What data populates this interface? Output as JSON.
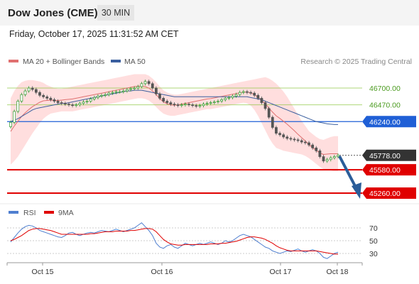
{
  "header": {
    "title": "Dow Jones (CME)",
    "timeframe": "30 MIN",
    "datetime": "Friday, October 17, 2025 11:31:52 AM CET"
  },
  "legend": {
    "ma20_label": "MA 20 + Bollinger Bands",
    "ma50_label": "MA 50",
    "source": "Research © 2025 Trading Central",
    "rsi_label": "RSI",
    "rsi_ma_label": "9MA"
  },
  "colors": {
    "resistance": "#8cc63f",
    "pivot": "#1f5fd6",
    "support": "#e00000",
    "current": "#333333",
    "ma20": "#e07070",
    "ma50": "#3a5f9f",
    "bollinger_fill": "#ffd6d6",
    "arrow": "#2b5d99",
    "rsi": "#4f7fd0",
    "rsi_ma": "#e00000"
  },
  "chart_data": [
    {
      "type": "candlestick",
      "yrange": [
        45150,
        46900
      ],
      "x_ticks": [
        "Oct 15",
        "Oct 16",
        "Oct 17",
        "Oct 18"
      ],
      "levels": [
        {
          "value": 46700,
          "label": "46700.00",
          "kind": "resistance"
        },
        {
          "value": 46470,
          "label": "46470.00",
          "kind": "resistance"
        },
        {
          "value": 46240,
          "label": "46240.00",
          "kind": "pivot"
        },
        {
          "value": 45778,
          "label": "45778.00",
          "kind": "current"
        },
        {
          "value": 45580,
          "label": "45580.00",
          "kind": "support"
        },
        {
          "value": 45260,
          "label": "45260.00",
          "kind": "support"
        }
      ],
      "close": [
        46230,
        46380,
        46520,
        46610,
        46660,
        46700,
        46680,
        46640,
        46600,
        46580,
        46560,
        46540,
        46520,
        46500,
        46490,
        46480,
        46470,
        46460,
        46470,
        46490,
        46510,
        46520,
        46550,
        46570,
        46590,
        46600,
        46610,
        46630,
        46640,
        46650,
        46650,
        46660,
        46680,
        46690,
        46700,
        46720,
        46760,
        46790,
        46760,
        46700,
        46620,
        46560,
        46520,
        46500,
        46480,
        46470,
        46460,
        46470,
        46480,
        46470,
        46460,
        46450,
        46460,
        46480,
        46490,
        46500,
        46510,
        46520,
        46540,
        46560,
        46570,
        46590,
        46610,
        46640,
        46650,
        46640,
        46630,
        46600,
        46560,
        46500,
        46420,
        46300,
        46160,
        46080,
        46060,
        46030,
        46010,
        46000,
        45990,
        45980,
        45960,
        45950,
        45920,
        45880,
        45840,
        45760,
        45700,
        45720,
        45745,
        45760,
        45778
      ],
      "bb_upper": [
        46560,
        46660,
        46730,
        46780,
        46800,
        46810,
        46810,
        46800,
        46790,
        46770,
        46740,
        46720,
        46700,
        46690,
        46690,
        46700,
        46710,
        46720,
        46730,
        46740,
        46750,
        46760,
        46770,
        46780,
        46790,
        46800,
        46810,
        46820,
        46830,
        46840,
        46850,
        46860,
        46870,
        46880,
        46890,
        46890,
        46890,
        46890,
        46870,
        46830,
        46780,
        46720,
        46670,
        46640,
        46620,
        46610,
        46610,
        46620,
        46630,
        46640,
        46650,
        46660,
        46670,
        46680,
        46690,
        46700,
        46710,
        46720,
        46730,
        46740,
        46750,
        46760,
        46770,
        46780,
        46790,
        46800,
        46810,
        46820,
        46830,
        46840,
        46850,
        46830,
        46800,
        46760,
        46710,
        46650,
        46580,
        46500,
        46420,
        46330,
        46250,
        46180,
        46110,
        46070,
        46030,
        46000,
        45990,
        46010,
        46030,
        46040,
        46040
      ],
      "bb_lower": [
        45650,
        45700,
        45760,
        45840,
        45920,
        46000,
        46080,
        46150,
        46220,
        46280,
        46320,
        46350,
        46360,
        46370,
        46380,
        46380,
        46380,
        46380,
        46390,
        46400,
        46410,
        46420,
        46430,
        46440,
        46450,
        46460,
        46470,
        46480,
        46490,
        46500,
        46510,
        46520,
        46530,
        46540,
        46550,
        46560,
        46560,
        46550,
        46530,
        46490,
        46440,
        46390,
        46350,
        46330,
        46320,
        46320,
        46330,
        46340,
        46350,
        46360,
        46370,
        46380,
        46390,
        46400,
        46410,
        46410,
        46420,
        46430,
        46440,
        46450,
        46460,
        46470,
        46480,
        46490,
        46500,
        46490,
        46460,
        46400,
        46320,
        46220,
        46120,
        46020,
        45940,
        45880,
        45860,
        45840,
        45830,
        45820,
        45810,
        45800,
        45790,
        45770,
        45740,
        45700,
        45660,
        45620,
        45590,
        45580,
        45570,
        45560,
        45560
      ],
      "ma50": [
        46240,
        46260,
        46280,
        46310,
        46340,
        46370,
        46400,
        46420,
        46430,
        46440,
        46450,
        46460,
        46470,
        46480,
        46490,
        46490,
        46500,
        46510,
        46520,
        46530,
        46540,
        46550,
        46560,
        46570,
        46580,
        46590,
        46600,
        46610,
        46620,
        46630,
        46640,
        46650,
        46660,
        46660,
        46670,
        46670,
        46670,
        46660,
        46650,
        46640,
        46630,
        46620,
        46610,
        46600,
        46590,
        46580,
        46580,
        46580,
        46580,
        46580,
        46580,
        46580,
        46580,
        46580,
        46580,
        46580,
        46580,
        46580,
        46580,
        46580,
        46580,
        46580,
        46580,
        46580,
        46580,
        46580,
        46570,
        46560,
        46550,
        46540,
        46520,
        46500,
        46480,
        46460,
        46440,
        46420,
        46400,
        46380,
        46360,
        46340,
        46320,
        46300,
        46280,
        46260,
        46240,
        46230,
        46220,
        46210,
        46205,
        46200,
        46200
      ]
    },
    {
      "type": "line",
      "name": "RSI",
      "yrange": [
        15,
        85
      ],
      "y_ticks": [
        70,
        50,
        30
      ],
      "rsi": [
        48,
        55,
        62,
        68,
        72,
        74,
        73,
        70,
        66,
        64,
        62,
        60,
        58,
        56,
        55,
        58,
        62,
        63,
        60,
        58,
        60,
        62,
        63,
        62,
        64,
        66,
        65,
        64,
        66,
        68,
        66,
        64,
        66,
        68,
        70,
        74,
        78,
        72,
        66,
        58,
        46,
        40,
        38,
        42,
        44,
        40,
        38,
        42,
        46,
        44,
        42,
        44,
        46,
        44,
        46,
        48,
        46,
        44,
        46,
        50,
        48,
        50,
        54,
        58,
        60,
        58,
        56,
        52,
        48,
        44,
        40,
        38,
        34,
        32,
        30,
        32,
        34,
        33,
        35,
        37,
        34,
        32,
        34,
        36,
        34,
        30,
        24,
        22,
        26,
        30,
        32
      ],
      "rsi_ma": [
        50,
        52,
        55,
        58,
        62,
        66,
        68,
        69,
        69,
        68,
        67,
        66,
        64,
        62,
        60,
        60,
        60,
        60,
        60,
        60,
        60,
        60,
        61,
        61,
        62,
        63,
        64,
        64,
        64,
        65,
        65,
        65,
        65,
        66,
        66,
        67,
        68,
        69,
        69,
        68,
        64,
        58,
        52,
        48,
        45,
        44,
        43,
        43,
        44,
        44,
        44,
        44,
        44,
        44,
        44,
        45,
        45,
        45,
        46,
        46,
        47,
        48,
        49,
        51,
        53,
        55,
        56,
        56,
        55,
        54,
        52,
        49,
        46,
        42,
        39,
        37,
        35,
        34,
        34,
        34,
        34,
        34,
        34,
        34,
        34,
        33,
        32,
        31,
        30,
        29,
        29
      ]
    }
  ]
}
